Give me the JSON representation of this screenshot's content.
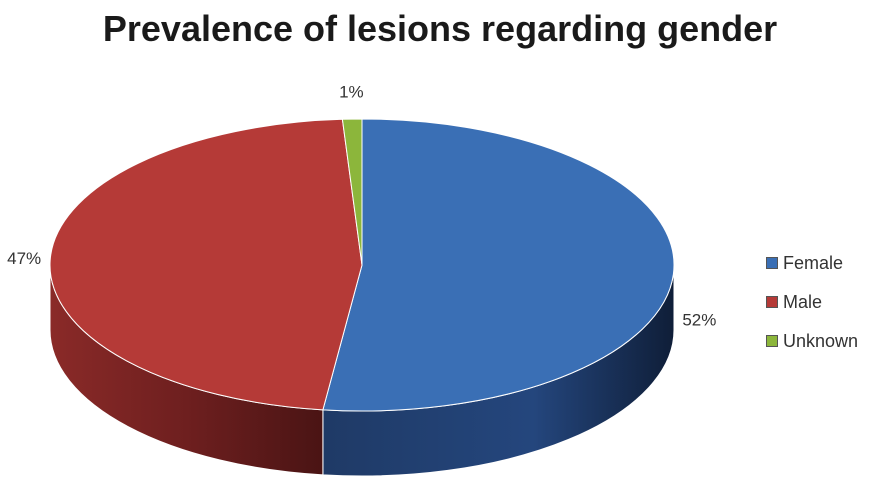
{
  "chart_data": {
    "type": "pie",
    "title": "Prevalence of lesions regarding gender",
    "categories": [
      "Female",
      "Male",
      "Unknown"
    ],
    "values": [
      52,
      47,
      1
    ],
    "data_labels": [
      "52%",
      "47%",
      "1%"
    ],
    "colors": [
      "#3a6fb5",
      "#b53a37",
      "#8cb63b"
    ],
    "side_colors": [
      "#1f3a66",
      "#6e1f1f",
      "#4d6a20"
    ],
    "legend_position": "right",
    "style": "3d-tilted"
  }
}
